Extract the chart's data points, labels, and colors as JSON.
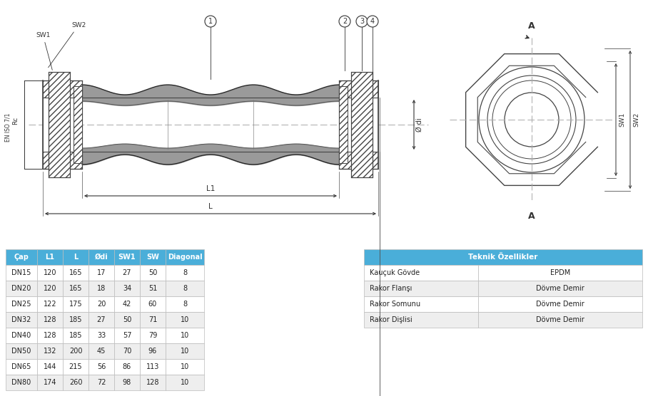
{
  "bg_color": "#ffffff",
  "table1_header": [
    "Çap",
    "L1",
    "L",
    "Ødi",
    "SW1",
    "SW",
    "Diagonal"
  ],
  "table1_rows": [
    [
      "DN15",
      "120",
      "165",
      "17",
      "27",
      "50",
      "8"
    ],
    [
      "DN20",
      "120",
      "165",
      "18",
      "34",
      "51",
      "8"
    ],
    [
      "DN25",
      "122",
      "175",
      "20",
      "42",
      "60",
      "8"
    ],
    [
      "DN32",
      "128",
      "185",
      "27",
      "50",
      "71",
      "10"
    ],
    [
      "DN40",
      "128",
      "185",
      "33",
      "57",
      "79",
      "10"
    ],
    [
      "DN50",
      "132",
      "200",
      "45",
      "70",
      "96",
      "10"
    ],
    [
      "DN65",
      "144",
      "215",
      "56",
      "86",
      "113",
      "10"
    ],
    [
      "DN80",
      "174",
      "260",
      "72",
      "98",
      "128",
      "10"
    ]
  ],
  "table2_header": "Teknik Özellikler",
  "table2_rows": [
    [
      "Kauçuk Gövde",
      "EPDM"
    ],
    [
      "Rakor Flanşı",
      "Dövme Demir"
    ],
    [
      "Rakor Somunu",
      "Dövme Demir"
    ],
    [
      "Rakor Dişlisi",
      "Dövme Demir"
    ]
  ],
  "header_color": "#4aaed9",
  "header_text_color": "#ffffff",
  "row_colors": [
    "#ffffff",
    "#eeeeee"
  ],
  "line_color": "#444444",
  "dim_line_color": "#333333",
  "centerline_color": "#aaaaaa",
  "label_color": "#222222"
}
